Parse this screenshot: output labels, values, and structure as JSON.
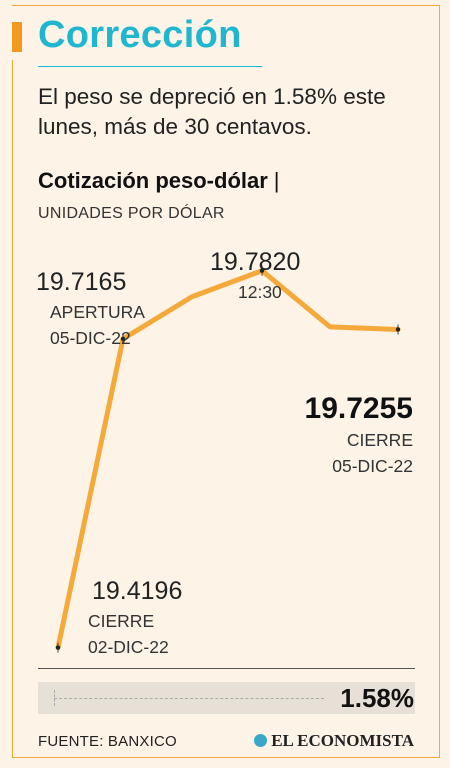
{
  "header": {
    "title": "Corrección",
    "subtitle": "El peso se depreció en 1.58% este lunes, más de 30 centavos.",
    "chart_title": "Cotización peso-dólar",
    "chart_title_sep": "|",
    "units": "UNIDADES POR DÓLAR"
  },
  "colors": {
    "accent_orange": "#f39a1e",
    "title_teal": "#1fb7cf",
    "line": "#f5a93a",
    "background": "#fdf3e6"
  },
  "annotations": {
    "close_prev_value": "19.4196",
    "close_prev_label": "CIERRE",
    "close_prev_date": "02-DIC-22",
    "open_value": "19.7165",
    "open_label": "APERTURA",
    "open_date": "05-DIC-22",
    "peak_value": "19.7820",
    "peak_time": "12:30",
    "close_value": "19.7255",
    "close_label": "CIERRE",
    "close_date": "05-DIC-22"
  },
  "change": {
    "value": "1.58%"
  },
  "footer": {
    "source": "FUENTE: BANXICO",
    "brand": "EL ECONOMISTA",
    "brand_icon": "globe-icon"
  },
  "chart_data": {
    "type": "line",
    "title": "Cotización peso-dólar",
    "ylabel": "UNIDADES POR DÓLAR",
    "ylim": [
      19.4,
      19.8
    ],
    "grid": false,
    "series": [
      {
        "values": [
          19.4196,
          19.7165,
          19.757,
          19.782,
          19.728,
          19.7255
        ]
      }
    ],
    "markers": [
      0,
      1,
      3,
      5
    ]
  }
}
